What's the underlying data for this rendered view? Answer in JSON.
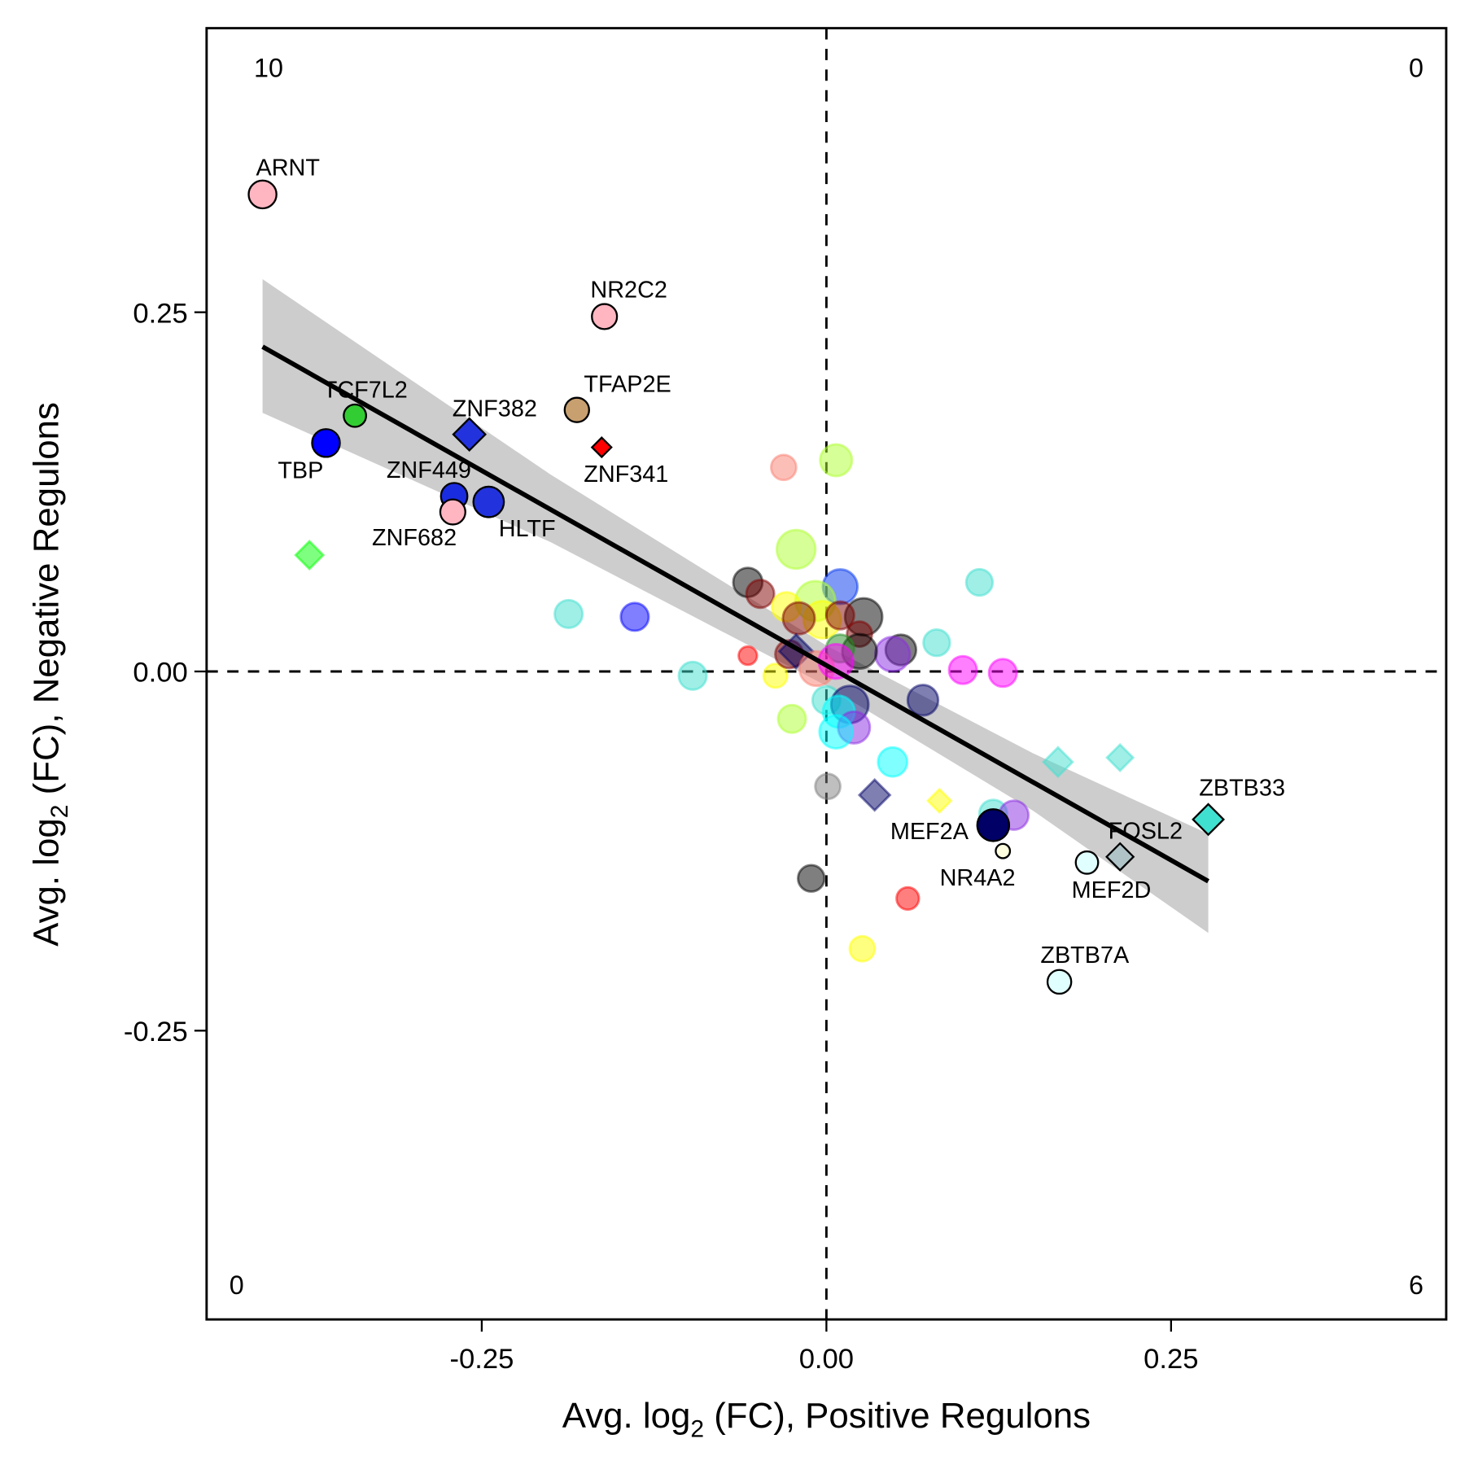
{
  "chart_data": {
    "type": "scatter",
    "title": "",
    "xlabel": {
      "prefix": "Avg. log",
      "sub": "2",
      "suffix": " (FC), Positive Regulons"
    },
    "ylabel": {
      "prefix": "Avg. log",
      "sub": "2",
      "suffix": " (FC), Negative Regulons"
    },
    "xlim": [
      -0.45,
      0.45
    ],
    "ylim": [
      -0.45,
      0.45
    ],
    "xticks": [
      {
        "v": -0.25,
        "label": "-0.25"
      },
      {
        "v": 0,
        "label": "0.00"
      },
      {
        "v": 0.25,
        "label": "0.25"
      }
    ],
    "yticks": [
      {
        "v": 0.25,
        "label": "0.25"
      },
      {
        "v": 0,
        "label": "0.00"
      },
      {
        "v": -0.25,
        "label": "-0.25"
      }
    ],
    "grid": false,
    "reference_lines": {
      "x": 0,
      "y": 0,
      "style": "dashed"
    },
    "quadrant_counts": {
      "top_left": "10",
      "top_right": "0",
      "bottom_left": "0",
      "bottom_right": "6"
    },
    "regression": {
      "line": [
        [
          -0.409,
          0.226
        ],
        [
          0.277,
          -0.146
        ]
      ],
      "ribbon": [
        {
          "x": -0.409,
          "lo": 0.18,
          "hi": 0.273
        },
        {
          "x": -0.2,
          "lo": 0.09,
          "hi": 0.137
        },
        {
          "x": 0.0,
          "lo": -0.01,
          "hi": 0.018
        },
        {
          "x": 0.15,
          "lo": -0.097,
          "hi": -0.057
        },
        {
          "x": 0.277,
          "lo": -0.182,
          "hi": -0.113
        }
      ],
      "line_color": "#000000",
      "ribbon_color": "#c8c8c8"
    },
    "points": [
      {
        "label": "ARNT",
        "x": -0.409,
        "y": 0.332,
        "color": "#ffb6c1",
        "shape": "circle",
        "size": 3,
        "highlight": true
      },
      {
        "label": "NR2C2",
        "x": -0.161,
        "y": 0.247,
        "color": "#ffb6c1",
        "shape": "circle",
        "size": 2.6,
        "highlight": true
      },
      {
        "label": "TCF7L2",
        "x": -0.342,
        "y": 0.178,
        "color": "#32cd32",
        "shape": "circle",
        "size": 2.2,
        "highlight": true
      },
      {
        "label": "TBP",
        "x": -0.363,
        "y": 0.159,
        "color": "#0000ff",
        "shape": "circle",
        "size": 3,
        "highlight": true
      },
      {
        "label": "ZNF382",
        "x": -0.259,
        "y": 0.165,
        "color": "#2233dd",
        "shape": "diamond",
        "size": 3.2,
        "highlight": true
      },
      {
        "label": "TFAP2E",
        "x": -0.181,
        "y": 0.182,
        "color": "#c8a070",
        "shape": "circle",
        "size": 2.5,
        "highlight": true
      },
      {
        "label": "ZNF341",
        "x": -0.163,
        "y": 0.156,
        "color": "#ff0000",
        "shape": "diamond",
        "size": 1.5,
        "highlight": true
      },
      {
        "label": "ZNF449",
        "x": -0.27,
        "y": 0.122,
        "color": "#1a2ce0",
        "shape": "circle",
        "size": 2.8,
        "highlight": true
      },
      {
        "label": "ZNF682",
        "x": -0.271,
        "y": 0.111,
        "color": "#ffb6c1",
        "shape": "circle",
        "size": 2.6,
        "highlight": true
      },
      {
        "label": "HLTF",
        "x": -0.245,
        "y": 0.118,
        "color": "#2233dd",
        "shape": "circle",
        "size": 3.4,
        "highlight": true
      },
      {
        "label": "ZBTB33",
        "x": 0.277,
        "y": -0.103,
        "color": "#40e0d0",
        "shape": "diamond",
        "size": 3,
        "highlight": true
      },
      {
        "label": "FOSL2",
        "x": 0.213,
        "y": -0.129,
        "color": "#b0c4c8",
        "shape": "diamond",
        "size": 2.5,
        "highlight": true
      },
      {
        "label": "MEF2D",
        "x": 0.189,
        "y": -0.133,
        "color": "#e0ffff",
        "shape": "circle",
        "size": 2.2,
        "highlight": true
      },
      {
        "label": "MEF2A",
        "x": 0.121,
        "y": -0.107,
        "color": "#000066",
        "shape": "circle",
        "size": 3.6,
        "highlight": true
      },
      {
        "label": "NR4A2",
        "x": 0.128,
        "y": -0.125,
        "color": "#ffffe0",
        "shape": "circle",
        "size": 1,
        "highlight": true
      },
      {
        "label": "ZBTB7A",
        "x": 0.169,
        "y": -0.216,
        "color": "#e0ffff",
        "shape": "circle",
        "size": 2.4,
        "highlight": true
      },
      {
        "x": -0.375,
        "y": 0.081,
        "color": "#00ff00",
        "shape": "diamond",
        "size": 2.6
      },
      {
        "x": -0.031,
        "y": 0.142,
        "color": "#fa8072",
        "shape": "circle",
        "size": 2.6
      },
      {
        "x": 0.007,
        "y": 0.147,
        "color": "#adff2f",
        "shape": "circle",
        "size": 3.6
      },
      {
        "x": -0.022,
        "y": 0.085,
        "color": "#adff2f",
        "shape": "circle",
        "size": 4.6
      },
      {
        "x": -0.187,
        "y": 0.04,
        "color": "#40e0d0",
        "shape": "circle",
        "size": 3
      },
      {
        "x": -0.139,
        "y": 0.038,
        "color": "#0000ff",
        "shape": "circle",
        "size": 3
      },
      {
        "x": -0.097,
        "y": -0.003,
        "color": "#40e0d0",
        "shape": "circle",
        "size": 3
      },
      {
        "x": -0.057,
        "y": 0.011,
        "color": "#ff0000",
        "shape": "circle",
        "size": 1.6
      },
      {
        "x": -0.037,
        "y": -0.003,
        "color": "#ffff00",
        "shape": "circle",
        "size": 2.4
      },
      {
        "x": -0.025,
        "y": -0.033,
        "color": "#adff2f",
        "shape": "circle",
        "size": 3
      },
      {
        "x": 0.001,
        "y": -0.08,
        "color": "#808080",
        "shape": "circle",
        "size": 2.6
      },
      {
        "x": -0.011,
        "y": -0.144,
        "color": "#000000",
        "shape": "circle",
        "size": 2.8
      },
      {
        "x": 0.111,
        "y": 0.062,
        "color": "#40e0d0",
        "shape": "circle",
        "size": 2.8
      },
      {
        "x": 0.08,
        "y": 0.02,
        "color": "#40e0d0",
        "shape": "circle",
        "size": 2.8
      },
      {
        "x": 0.099,
        "y": 0.001,
        "color": "#ff00ff",
        "shape": "circle",
        "size": 3
      },
      {
        "x": 0.128,
        "y": -0.001,
        "color": "#ff00ff",
        "shape": "circle",
        "size": 3
      },
      {
        "x": 0.048,
        "y": -0.063,
        "color": "#00ffff",
        "shape": "circle",
        "size": 3.2
      },
      {
        "x": 0.035,
        "y": -0.086,
        "color": "#000066",
        "shape": "diamond",
        "size": 3
      },
      {
        "x": 0.082,
        "y": -0.09,
        "color": "#ffff00",
        "shape": "diamond",
        "size": 2
      },
      {
        "x": 0.168,
        "y": -0.063,
        "color": "#40e0d0",
        "shape": "diamond",
        "size": 2.8
      },
      {
        "x": 0.213,
        "y": -0.06,
        "color": "#40e0d0",
        "shape": "diamond",
        "size": 2.4
      },
      {
        "x": 0.121,
        "y": -0.099,
        "color": "#40e0d0",
        "shape": "circle",
        "size": 3
      },
      {
        "x": 0.136,
        "y": -0.1,
        "color": "#8a2be2",
        "shape": "circle",
        "size": 3.2
      },
      {
        "x": 0.059,
        "y": -0.158,
        "color": "#ff0000",
        "shape": "circle",
        "size": 2.2
      },
      {
        "x": 0.026,
        "y": -0.193,
        "color": "#ffff00",
        "shape": "circle",
        "size": 2.6
      },
      {
        "x": 0.07,
        "y": -0.02,
        "color": "#000066",
        "shape": "circle",
        "size": 3.4
      },
      {
        "x": -0.057,
        "y": 0.062,
        "color": "#000000",
        "shape": "circle",
        "size": 3.2
      },
      {
        "x": -0.048,
        "y": 0.054,
        "color": "#800000",
        "shape": "circle",
        "size": 3
      },
      {
        "x": 0.01,
        "y": 0.059,
        "color": "#0033ee",
        "shape": "circle",
        "size": 4
      },
      {
        "x": 0.027,
        "y": 0.038,
        "color": "#000000",
        "shape": "circle",
        "size": 4.4
      },
      {
        "x": -0.008,
        "y": 0.049,
        "color": "#adff2f",
        "shape": "circle",
        "size": 4.8
      },
      {
        "x": -0.003,
        "y": 0.036,
        "color": "#ffff00",
        "shape": "circle",
        "size": 4.4
      },
      {
        "x": -0.029,
        "y": 0.045,
        "color": "#ffff00",
        "shape": "circle",
        "size": 3.2
      },
      {
        "x": -0.02,
        "y": 0.037,
        "color": "#800000",
        "shape": "circle",
        "size": 3.6
      },
      {
        "x": 0.01,
        "y": 0.039,
        "color": "#800000",
        "shape": "circle",
        "size": 3
      },
      {
        "x": 0.024,
        "y": 0.026,
        "color": "#800000",
        "shape": "circle",
        "size": 2.6
      },
      {
        "x": 0.054,
        "y": 0.015,
        "color": "#000000",
        "shape": "circle",
        "size": 3.4
      },
      {
        "x": 0.048,
        "y": 0.012,
        "color": "#8a2be2",
        "shape": "circle",
        "size": 4
      },
      {
        "x": 0.024,
        "y": 0.014,
        "color": "#000000",
        "shape": "circle",
        "size": 4
      },
      {
        "x": 0.01,
        "y": 0.016,
        "color": "#228b22",
        "shape": "circle",
        "size": 3
      },
      {
        "x": -0.027,
        "y": 0.012,
        "color": "#800000",
        "shape": "circle",
        "size": 3
      },
      {
        "x": -0.022,
        "y": 0.014,
        "color": "#000066",
        "shape": "diamond",
        "size": 3.4
      },
      {
        "x": -0.007,
        "y": 0.002,
        "color": "#fa8072",
        "shape": "circle",
        "size": 4
      },
      {
        "x": 0.007,
        "y": 0.007,
        "color": "#ff00ff",
        "shape": "circle",
        "size": 4
      },
      {
        "x": 0.0,
        "y": -0.02,
        "color": "#40e0d0",
        "shape": "circle",
        "size": 3
      },
      {
        "x": 0.017,
        "y": -0.023,
        "color": "#000066",
        "shape": "circle",
        "size": 4.4
      },
      {
        "x": 0.009,
        "y": -0.028,
        "color": "#00ffff",
        "shape": "circle",
        "size": 3.6
      },
      {
        "x": 0.02,
        "y": -0.039,
        "color": "#8a2be2",
        "shape": "circle",
        "size": 3.6
      },
      {
        "x": 0.007,
        "y": -0.042,
        "color": "#00ffff",
        "shape": "circle",
        "size": 3.8
      }
    ]
  }
}
